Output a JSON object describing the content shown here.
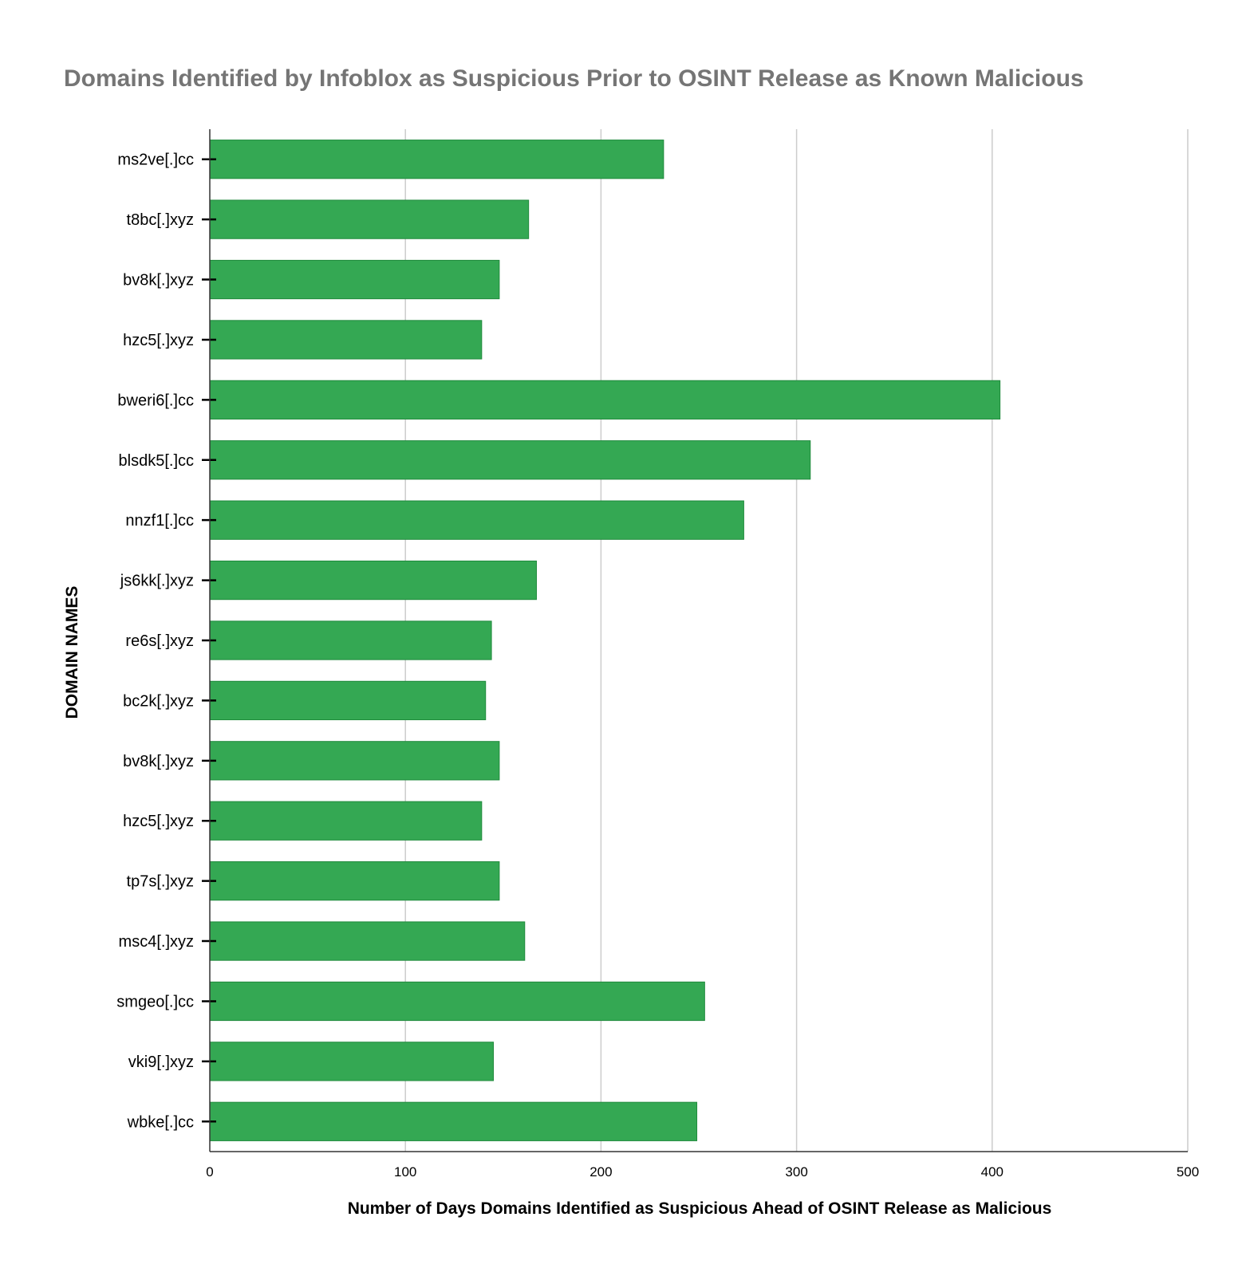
{
  "chart_data": {
    "type": "bar",
    "orientation": "horizontal",
    "title": "Domains Identified by Infoblox as Suspicious Prior to OSINT Release as Known Malicious",
    "xlabel": "Number of Days Domains Identified as Suspicious Ahead of OSINT Release as Malicious",
    "ylabel": "DOMAIN NAMES",
    "categories": [
      "ms2ve[.]cc",
      "t8bc[.]xyz",
      "bv8k[.]xyz",
      "hzc5[.]xyz",
      "bweri6[.]cc",
      "blsdk5[.]cc",
      "nnzf1[.]cc",
      "js6kk[.]xyz",
      "re6s[.]xyz",
      "bc2k[.]xyz",
      "bv8k[.]xyz",
      "hzc5[.]xyz",
      "tp7s[.]xyz",
      "msc4[.]xyz",
      "smgeo[.]cc",
      "vki9[.]xyz",
      "wbke[.]cc"
    ],
    "values": [
      232,
      163,
      148,
      139,
      404,
      307,
      273,
      167,
      144,
      141,
      148,
      139,
      148,
      161,
      253,
      145,
      249
    ],
    "xlim": [
      0,
      500
    ],
    "xticks": [
      "0",
      "100",
      "200",
      "300",
      "400",
      "500"
    ],
    "grid": true,
    "legend": "none",
    "bar_color": "#34a853"
  }
}
